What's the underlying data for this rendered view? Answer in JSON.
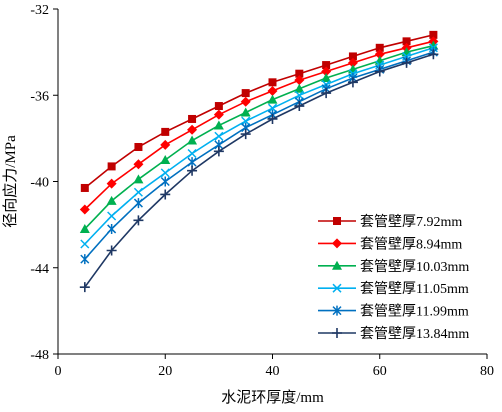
{
  "chart_data": {
    "type": "line",
    "title": "",
    "xlabel": "水泥环厚度/mm",
    "ylabel": "径向应力/MPa",
    "xlim": [
      0,
      80
    ],
    "ylim": [
      -48,
      -32
    ],
    "xticks": [
      0,
      20,
      40,
      60,
      80
    ],
    "yticks": [
      -32,
      -36,
      -40,
      -44,
      -48
    ],
    "grid": false,
    "legend_position": "bottom-right",
    "x": [
      5,
      10,
      15,
      20,
      25,
      30,
      35,
      40,
      45,
      50,
      55,
      60,
      65,
      70
    ],
    "series": [
      {
        "name": "套管壁厚7.92mm",
        "color": "#c00000",
        "marker": "square",
        "values": [
          -40.3,
          -39.3,
          -38.4,
          -37.7,
          -37.1,
          -36.5,
          -35.9,
          -35.4,
          -35.0,
          -34.6,
          -34.2,
          -33.8,
          -33.5,
          -33.2
        ]
      },
      {
        "name": "套管壁厚8.94mm",
        "color": "#ff0000",
        "marker": "diamond",
        "values": [
          -41.3,
          -40.1,
          -39.2,
          -38.3,
          -37.6,
          -36.9,
          -36.3,
          -35.8,
          -35.3,
          -34.9,
          -34.5,
          -34.1,
          -33.8,
          -33.5
        ]
      },
      {
        "name": "套管壁厚10.03mm",
        "color": "#00b050",
        "marker": "triangle",
        "values": [
          -42.2,
          -40.9,
          -39.9,
          -39.0,
          -38.1,
          -37.4,
          -36.8,
          -36.2,
          -35.7,
          -35.2,
          -34.8,
          -34.4,
          -34.0,
          -33.7
        ]
      },
      {
        "name": "套管壁厚11.05mm",
        "color": "#00b0f0",
        "marker": "x",
        "values": [
          -42.9,
          -41.6,
          -40.5,
          -39.6,
          -38.7,
          -37.9,
          -37.2,
          -36.6,
          -36.0,
          -35.5,
          -35.0,
          -34.6,
          -34.2,
          -33.8
        ]
      },
      {
        "name": "套管壁厚11.99mm",
        "color": "#0070c0",
        "marker": "asterisk",
        "values": [
          -43.6,
          -42.2,
          -41.0,
          -40.0,
          -39.1,
          -38.3,
          -37.5,
          -36.9,
          -36.3,
          -35.7,
          -35.2,
          -34.8,
          -34.4,
          -34.0
        ]
      },
      {
        "name": "套管壁厚13.84mm",
        "color": "#1f3864",
        "marker": "plus",
        "values": [
          -44.9,
          -43.2,
          -41.8,
          -40.6,
          -39.5,
          -38.6,
          -37.8,
          -37.1,
          -36.5,
          -35.9,
          -35.4,
          -34.9,
          -34.5,
          -34.1
        ]
      }
    ]
  }
}
